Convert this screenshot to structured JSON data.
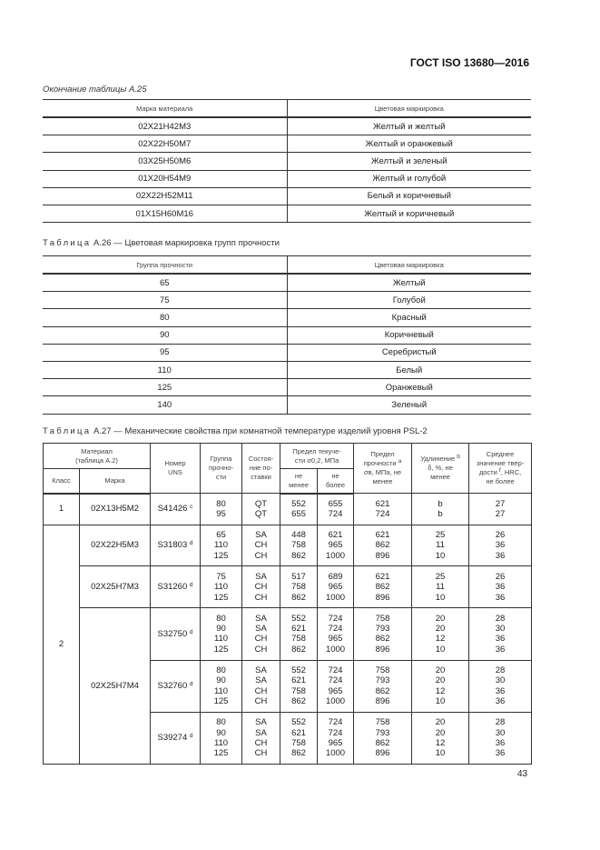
{
  "header": {
    "doc_id": "ГОСТ ISO 13680—2016"
  },
  "table_a25": {
    "caption": "Окончание таблицы А.25",
    "columns": [
      "Марка материала",
      "Цветовая маркировка"
    ],
    "rows": [
      [
        "02Х21Н42М3",
        "Желтый и желтый"
      ],
      [
        "02Х22Н50М7",
        "Желтый и оранжевый"
      ],
      [
        "03Х25Н50М6",
        "Желтый и зеленый"
      ],
      [
        "01Х20Н54М9",
        "Желтый и голубой"
      ],
      [
        "02Х22Н52М11",
        "Белый и коричневый"
      ],
      [
        "01Х15Н60М16",
        "Желтый и коричневый"
      ]
    ]
  },
  "table_a26": {
    "caption_prefix": "Таблица",
    "caption": "А.26 — Цветовая маркировка групп прочности",
    "columns": [
      "Группа прочности",
      "Цветовая маркировка"
    ],
    "rows": [
      [
        "65",
        "Желтый"
      ],
      [
        "75",
        "Голубой"
      ],
      [
        "80",
        "Красный"
      ],
      [
        "90",
        "Коричневый"
      ],
      [
        "95",
        "Серебристый"
      ],
      [
        "110",
        "Белый"
      ],
      [
        "125",
        "Оранжевый"
      ],
      [
        "140",
        "Зеленый"
      ]
    ]
  },
  "table_a27": {
    "caption_prefix": "Таблица",
    "caption": "А.27 — Механические свойства при комнатной температуре изделий уровня PSL-2",
    "headers": {
      "material": "Материал\n(таблица А.2)",
      "class": "Класс",
      "grade": "Марка",
      "uns": "Номер\nUNS",
      "strength_group": "Группа\nпрочно-\nсти",
      "delivery": "Состоя-\nние по-\nставки",
      "yield": "Предел текуче-\nсти σ0,2, МПа",
      "yield_min": "не\nменее",
      "yield_max": "не\nболее",
      "tensile": "Предел\nпрочности",
      "tensile_sup": "a",
      "tensile_rest": "σв, МПа, не\nменее",
      "elong": "Удлинение",
      "elong_sup": "b",
      "elong_rest": "δ, %, не\nменее",
      "hardness": "Среднее\nзначение твер-\nдости",
      "hardness_sup": "f",
      "hardness_rest": ", HRC,\nне более"
    },
    "groups": [
      {
        "class": "1",
        "grades": [
          {
            "grade": "02Х13Н5М2",
            "items": [
              {
                "uns": "S41426",
                "sup": "c",
                "group": "80\n95",
                "state": "QT\nQT",
                "ymin": "552\n655",
                "ymax": "655\n724",
                "tensile": "621\n724",
                "elong": "b\nb",
                "hard": "27\n27"
              }
            ]
          }
        ]
      },
      {
        "class": "2",
        "grades": [
          {
            "grade": "02Х22Н5М3",
            "items": [
              {
                "uns": "S31803",
                "sup": "d",
                "group": "65\n110\n125",
                "state": "SA\nCH\nCH",
                "ymin": "448\n758\n862",
                "ymax": "621\n965\n1000",
                "tensile": "621\n862\n896",
                "elong": "25\n11\n10",
                "hard": "26\n36\n36"
              }
            ]
          },
          {
            "grade": "02Х25Н7М3",
            "items": [
              {
                "uns": "S31260",
                "sup": "d",
                "group": "75\n110\n125",
                "state": "SA\nCH\nCH",
                "ymin": "517\n758\n862",
                "ymax": "689\n965\n1000",
                "tensile": "621\n862\n896",
                "elong": "25\n11\n10",
                "hard": "26\n36\n36"
              }
            ]
          },
          {
            "grade": "02Х25Н7М4",
            "items": [
              {
                "uns": "S32750",
                "sup": "d",
                "group": "80\n90\n110\n125",
                "state": "SA\nSA\nCH\nCH",
                "ymin": "552\n621\n758\n862",
                "ymax": "724\n724\n965\n1000",
                "tensile": "758\n793\n862\n896",
                "elong": "20\n20\n12\n10",
                "hard": "28\n30\n36\n36"
              },
              {
                "uns": "S32760",
                "sup": "d",
                "group": "80\n90\n110\n125",
                "state": "SA\nSA\nCH\nCH",
                "ymin": "552\n621\n758\n862",
                "ymax": "724\n724\n965\n1000",
                "tensile": "758\n793\n862\n896",
                "elong": "20\n20\n12\n10",
                "hard": "28\n30\n36\n36"
              },
              {
                "uns": "S39274",
                "sup": "d",
                "group": "80\n90\n110\n125",
                "state": "SA\nSA\nCH\nCH",
                "ymin": "552\n621\n758\n862",
                "ymax": "724\n724\n965\n1000",
                "tensile": "758\n793\n862\n896",
                "elong": "20\n20\n12\n10",
                "hard": "28\n30\n36\n36"
              }
            ]
          }
        ]
      }
    ]
  },
  "page_number": "43"
}
